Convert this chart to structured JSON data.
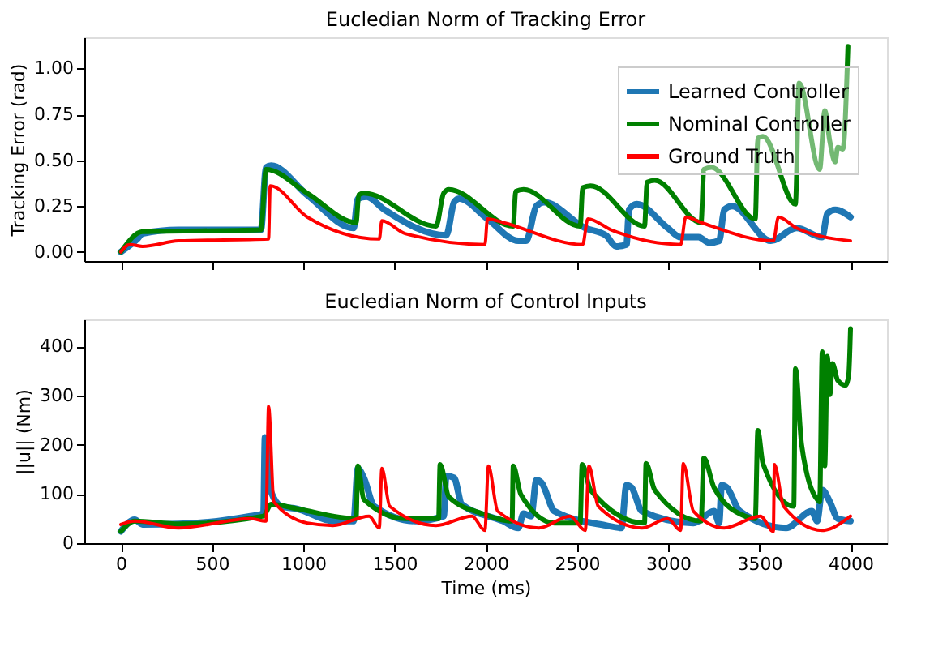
{
  "chart_data": [
    {
      "type": "line",
      "title": "Eucledian Norm of Tracking Error",
      "ylabel": "Tracking Error (rad)",
      "xlim": [
        -200,
        4200
      ],
      "xticks": [
        0,
        500,
        1000,
        1500,
        2000,
        2500,
        3000,
        3500,
        4000
      ],
      "ylim": [
        -0.05,
        1.17
      ],
      "yticks": [
        {
          "value": 0,
          "label": "0.00"
        },
        {
          "value": 0.25,
          "label": "0.25"
        },
        {
          "value": 0.5,
          "label": "0.50"
        },
        {
          "value": 0.75,
          "label": "0.75"
        },
        {
          "value": 1,
          "label": "1.00"
        }
      ],
      "tick_labels": "y",
      "legend": "top right",
      "grid": false,
      "line_style": "solid",
      "marker": "none",
      "series": [
        {
          "name": "Learned Controller",
          "color": "#1f77b4",
          "x": [
            0,
            90,
            119,
            316,
            768,
            796,
            824,
            1022,
            1276,
            1299,
            1347,
            1445,
            1784,
            1827,
            1855,
            2010,
            2179,
            2222,
            2278,
            2320,
            2546,
            2659,
            2716,
            2772,
            2786,
            2829,
            2998,
            3069,
            3167,
            3224,
            3280,
            3308,
            3351,
            3563,
            3704,
            3845,
            3873,
            3916,
            4000
          ],
          "values": [
            0,
            0.07,
            0.1,
            0.12,
            0.12,
            0.46,
            0.47,
            0.31,
            0.13,
            0.29,
            0.3,
            0.23,
            0.09,
            0.27,
            0.29,
            0.18,
            0.06,
            0.06,
            0.25,
            0.27,
            0.13,
            0.09,
            0.03,
            0.04,
            0.23,
            0.26,
            0.13,
            0.08,
            0.08,
            0.05,
            0.06,
            0.23,
            0.25,
            0.06,
            0.13,
            0.08,
            0.21,
            0.23,
            0.19
          ]
        },
        {
          "name": "Nominal Controller",
          "color": "#008000",
          "x": [
            0,
            119,
            768,
            796,
            1022,
            1290,
            1304,
            1332,
            1728,
            1770,
            1798,
            2151,
            2165,
            2208,
            2518,
            2532,
            2575,
            2871,
            2885,
            2927,
            3181,
            3196,
            3238,
            3478,
            3492,
            3520,
            3698,
            3718,
            3831,
            3859,
            3887,
            3916,
            3930,
            3958,
            3986
          ],
          "values": [
            0,
            0.11,
            0.12,
            0.45,
            0.32,
            0.16,
            0.31,
            0.32,
            0.14,
            0.32,
            0.34,
            0.14,
            0.33,
            0.34,
            0.14,
            0.35,
            0.36,
            0.14,
            0.38,
            0.39,
            0.16,
            0.45,
            0.46,
            0.18,
            0.62,
            0.63,
            0.26,
            0.92,
            0.45,
            0.77,
            0.6,
            0.49,
            0.57,
            0.56,
            1.12
          ]
        },
        {
          "name": "Ground Truth",
          "color": "#ff0000",
          "x": [
            0,
            48,
            119,
            316,
            810,
            819,
            1022,
            1417,
            1431,
            1558,
            1996,
            2010,
            2095,
            2532,
            2560,
            2688,
            3069,
            3097,
            3181,
            3577,
            3605,
            3704,
            4000
          ],
          "values": [
            0,
            0.04,
            0.03,
            0.06,
            0.07,
            0.36,
            0.19,
            0.07,
            0.17,
            0.1,
            0.04,
            0.18,
            0.16,
            0.04,
            0.18,
            0.12,
            0.04,
            0.19,
            0.16,
            0.06,
            0.19,
            0.13,
            0.06
          ]
        }
      ]
    },
    {
      "type": "line",
      "title": "Eucledian Norm of Control Inputs",
      "xlabel": "Time (ms)",
      "ylabel": "||u|| (Nm)",
      "xlim": [
        -200,
        4200
      ],
      "xticks": [
        0,
        500,
        1000,
        1500,
        2000,
        2500,
        3000,
        3500,
        4000
      ],
      "ylim": [
        0,
        455
      ],
      "yticks": [
        0,
        100,
        200,
        300,
        400
      ],
      "legend": false,
      "grid": false,
      "line_style": "solid",
      "marker": "none",
      "series": [
        {
          "color": "#1f77b4",
          "x": [
            0,
            76,
            119,
            316,
            711,
            782,
            790,
            824,
            881,
            965,
            1163,
            1276,
            1299,
            1332,
            1389,
            1615,
            1770,
            1784,
            1827,
            1869,
            2095,
            2179,
            2208,
            2250,
            2278,
            2306,
            2377,
            2659,
            2744,
            2772,
            2800,
            2857,
            3139,
            3252,
            3280,
            3294,
            3323,
            3393,
            3647,
            3788,
            3817,
            3845,
            3887,
            3930,
            4000
          ],
          "values": [
            24,
            48,
            38,
            39,
            55,
            60,
            215,
            104,
            75,
            70,
            45,
            45,
            152,
            133,
            75,
            45,
            55,
            137,
            133,
            79,
            45,
            31,
            60,
            55,
            128,
            123,
            65,
            36,
            31,
            118,
            113,
            65,
            41,
            65,
            41,
            118,
            113,
            65,
            31,
            65,
            45,
            108,
            84,
            50,
            45
          ]
        },
        {
          "color": "#008000",
          "x": [
            0,
            76,
            316,
            782,
            824,
            965,
            1290,
            1299,
            1332,
            1558,
            1742,
            1750,
            1798,
            1982,
            2145,
            2151,
            2193,
            2377,
            2518,
            2529,
            2575,
            2871,
            2879,
            2927,
            3181,
            3196,
            3252,
            3421,
            3478,
            3492,
            3520,
            3689,
            3698,
            3732,
            3817,
            3831,
            3845,
            3859,
            3873,
            3887,
            3901,
            3930,
            3972,
            3990,
            4000
          ],
          "values": [
            24,
            45,
            39,
            55,
            79,
            70,
            50,
            157,
            89,
            50,
            50,
            160,
            94,
            60,
            45,
            157,
            99,
            41,
            41,
            160,
            108,
            41,
            162,
            108,
            45,
            173,
            113,
            55,
            50,
            229,
            162,
            75,
            355,
            200,
            89,
            84,
            389,
            157,
            380,
            302,
            365,
            331,
            321,
            341,
            436
          ]
        },
        {
          "color": "#ff0000",
          "x": [
            0,
            76,
            316,
            711,
            796,
            810,
            839,
            1022,
            1163,
            1361,
            1417,
            1431,
            1474,
            1728,
            1925,
            1996,
            2015,
            2066,
            2292,
            2462,
            2546,
            2566,
            2617,
            2857,
            2998,
            3069,
            3083,
            3139,
            3308,
            3506,
            3577,
            3583,
            3633,
            3845,
            4000
          ],
          "values": [
            38,
            45,
            31,
            50,
            45,
            278,
            84,
            41,
            36,
            55,
            31,
            152,
            75,
            36,
            55,
            26,
            157,
            65,
            31,
            55,
            26,
            157,
            75,
            31,
            50,
            26,
            162,
            65,
            31,
            55,
            24,
            160,
            75,
            26,
            55
          ]
        }
      ]
    }
  ]
}
